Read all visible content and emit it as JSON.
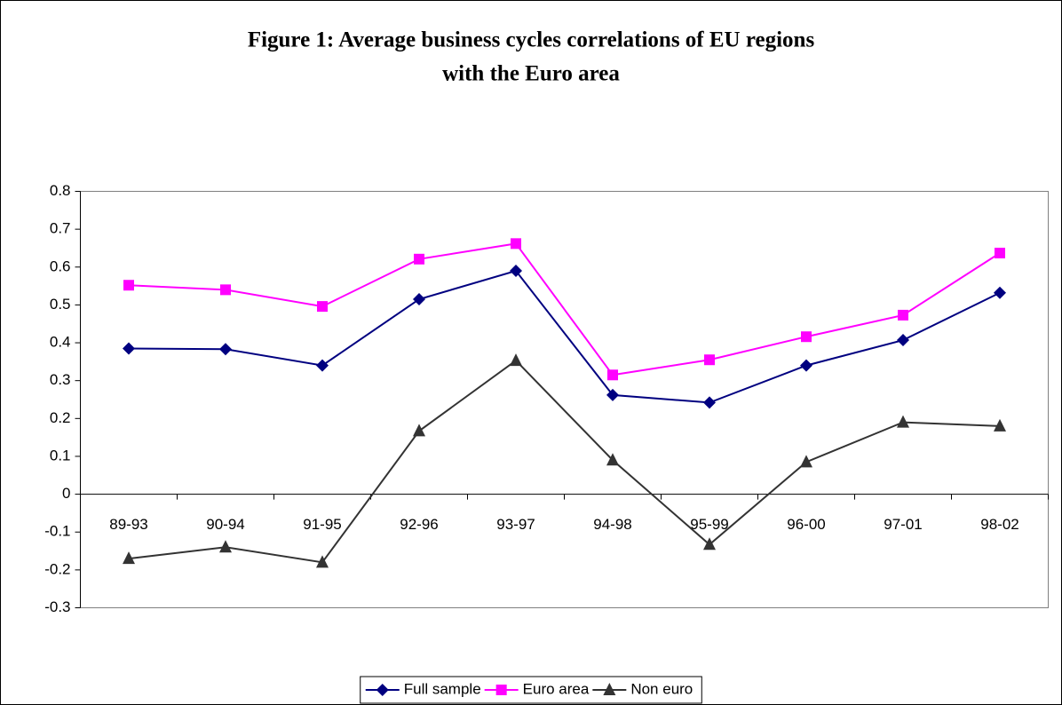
{
  "chart_data": {
    "type": "line",
    "title": [
      "Figure 1: Average business cycles correlations of EU regions",
      "with the Euro area"
    ],
    "categories": [
      "89-93",
      "90-94",
      "91-95",
      "92-96",
      "93-97",
      "94-98",
      "95-99",
      "96-00",
      "97-01",
      "98-02"
    ],
    "series": [
      {
        "name": "Full sample",
        "color": "#000080",
        "marker": "diamond",
        "values": [
          0.385,
          0.383,
          0.34,
          0.515,
          0.59,
          0.262,
          0.242,
          0.34,
          0.407,
          0.532
        ]
      },
      {
        "name": "Euro area",
        "color": "#ff00ff",
        "marker": "square",
        "values": [
          0.552,
          0.54,
          0.496,
          0.621,
          0.662,
          0.315,
          0.355,
          0.416,
          0.473,
          0.637
        ]
      },
      {
        "name": "Non euro",
        "color": "#333333",
        "marker": "triangle",
        "values": [
          -0.17,
          -0.14,
          -0.18,
          0.167,
          0.353,
          0.09,
          -0.133,
          0.085,
          0.19,
          0.18
        ]
      }
    ],
    "ylim": [
      -0.3,
      0.8
    ],
    "yticks": [
      -0.3,
      -0.2,
      -0.1,
      0,
      0.1,
      0.2,
      0.3,
      0.4,
      0.5,
      0.6,
      0.7,
      0.8
    ],
    "grid": false,
    "legend": "bottom"
  }
}
